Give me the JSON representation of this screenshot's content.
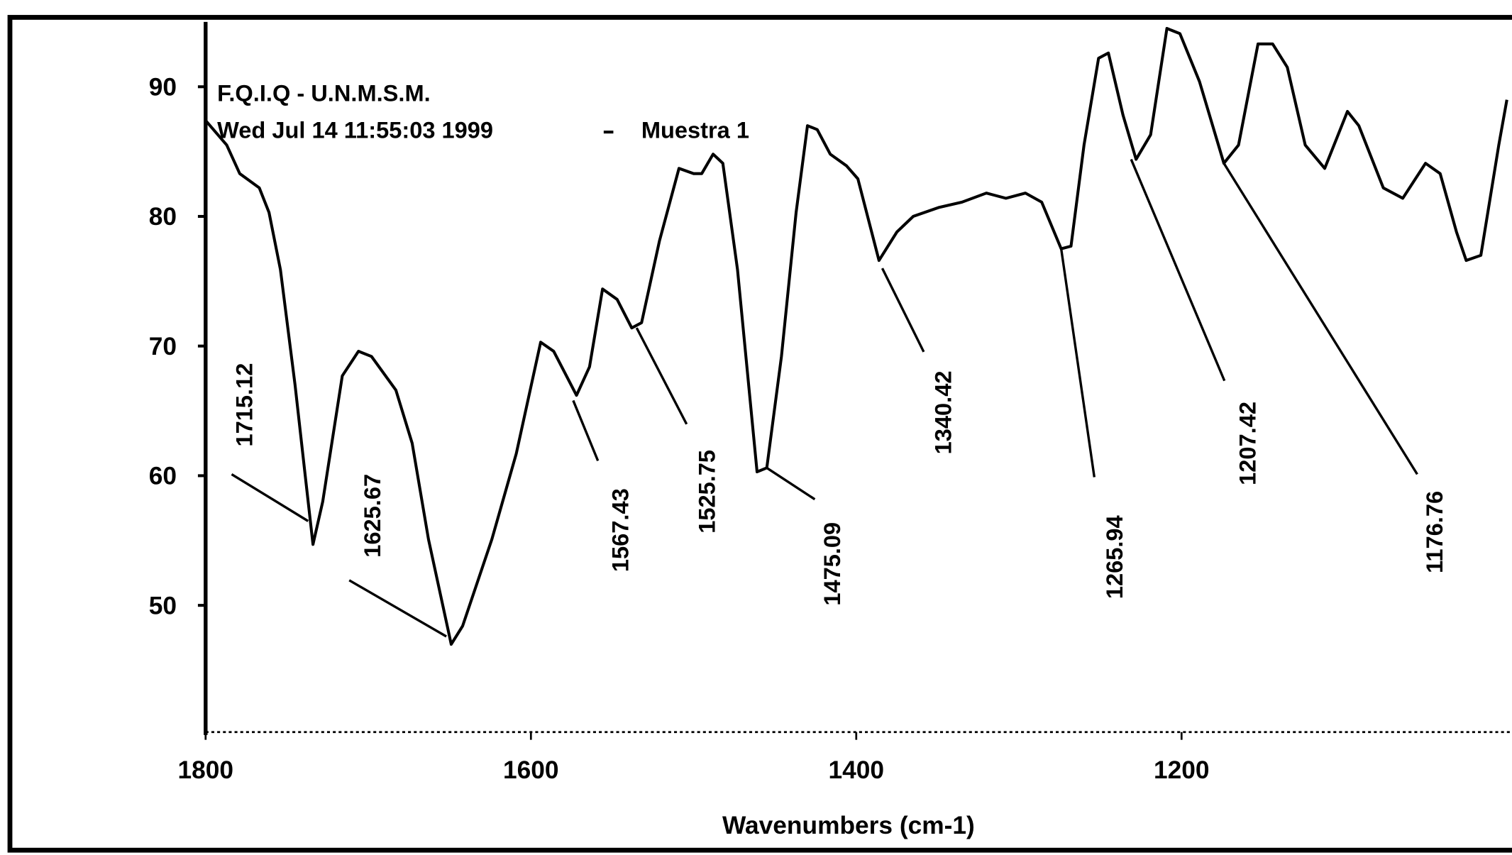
{
  "chart_data": {
    "type": "line",
    "header": "F.Q.I.Q - U.N.M.S.M.",
    "date": "Wed Jul 14 11:55:03 1999",
    "sample": "Muestra 1",
    "xlabel": "Wavenumbers (cm-1)",
    "xlim": [
      1800,
      1000
    ],
    "ylim": [
      40,
      95
    ],
    "xticks": [
      1800,
      1600,
      1400,
      1200
    ],
    "yticks": [
      50,
      60,
      70,
      80,
      90
    ],
    "series": [
      {
        "color": "#000000",
        "x": [
          1800,
          1787,
          1779,
          1767,
          1761,
          1754,
          1745,
          1739,
          1734,
          1728,
          1716,
          1706,
          1698,
          1683,
          1673,
          1663,
          1649,
          1642,
          1624,
          1609,
          1594,
          1586,
          1572,
          1564,
          1556,
          1547,
          1538,
          1532,
          1521,
          1509,
          1500,
          1495,
          1488,
          1482,
          1473,
          1461,
          1455,
          1446,
          1437,
          1430,
          1424,
          1416,
          1406,
          1399,
          1386,
          1375,
          1365,
          1349,
          1335,
          1320,
          1308,
          1296,
          1286,
          1274,
          1268,
          1260,
          1251,
          1245,
          1236,
          1228,
          1219,
          1209,
          1201,
          1189,
          1174,
          1165,
          1153,
          1144,
          1135,
          1124,
          1112,
          1098,
          1091,
          1076,
          1064,
          1050,
          1041,
          1031,
          1025,
          1016,
          1005,
          1000
        ],
        "values": [
          87.4,
          85.5,
          83.3,
          82.2,
          80.3,
          75.9,
          67.0,
          60.3,
          54.7,
          58.0,
          67.7,
          69.6,
          69.2,
          66.6,
          62.5,
          55.1,
          47.0,
          48.4,
          55.1,
          61.7,
          70.3,
          69.6,
          66.2,
          68.4,
          74.4,
          73.6,
          71.4,
          71.8,
          78.1,
          83.7,
          83.3,
          83.3,
          84.8,
          84.1,
          75.9,
          60.3,
          60.6,
          69.2,
          80.3,
          87.0,
          86.7,
          84.8,
          83.9,
          82.9,
          76.6,
          78.8,
          80.0,
          80.7,
          81.1,
          81.8,
          81.4,
          81.8,
          81.1,
          77.5,
          77.7,
          85.5,
          92.2,
          92.6,
          87.8,
          84.4,
          86.3,
          94.5,
          94.1,
          90.4,
          84.1,
          85.5,
          93.3,
          93.3,
          91.5,
          85.5,
          83.7,
          88.1,
          87.0,
          82.2,
          81.4,
          84.1,
          83.3,
          78.8,
          76.6,
          77.0,
          85.5,
          89.0
        ]
      }
    ],
    "annotations": [
      {
        "text": "1715.12",
        "x": 1737,
        "y": 56.5
      },
      {
        "text": "1625.67",
        "x": 1652,
        "y": 47.6
      },
      {
        "text": "1567.43",
        "x": 1574,
        "y": 65.8
      },
      {
        "text": "1525.75",
        "x": 1535,
        "y": 71.4
      },
      {
        "text": "1475.09",
        "x": 1455,
        "y": 60.6
      },
      {
        "text": "1340.42",
        "x": 1384,
        "y": 76.0
      },
      {
        "text": "1265.94",
        "x": 1274,
        "y": 77.5
      },
      {
        "text": "1207.42",
        "x": 1231,
        "y": 84.4
      },
      {
        "text": "1176.76",
        "x": 1174,
        "y": 84.1
      }
    ]
  }
}
